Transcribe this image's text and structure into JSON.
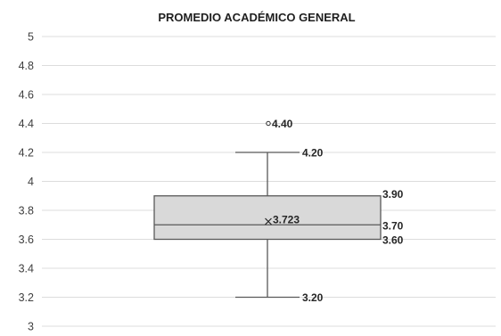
{
  "chart_data": {
    "type": "box",
    "title": "PROMEDIO ACADÉMICO GENERAL",
    "xlabel": "",
    "ylabel": "",
    "ylim": [
      3,
      5
    ],
    "ytick_step": 0.2,
    "y_ticks": [
      "3",
      "3.2",
      "3.4",
      "3.6",
      "3.8",
      "4",
      "4.2",
      "4.4",
      "4.6",
      "4.8",
      "5"
    ],
    "grid": true,
    "legend": "none",
    "box": {
      "min": 3.2,
      "q1": 3.6,
      "median": 3.7,
      "q3": 3.9,
      "max": 4.2,
      "mean": 3.723,
      "outliers": [
        4.4
      ]
    },
    "labels": {
      "min": "3.20",
      "q1": "3.60",
      "median": "3.70",
      "q3": "3.90",
      "max": "4.20",
      "mean": "3.723",
      "outlier": "4.40"
    },
    "colors": {
      "box_fill": "#d9d9d9",
      "box_stroke": "#595959",
      "whisker": "#595959",
      "grid": "#dcdcdc",
      "text": "#262626"
    }
  }
}
